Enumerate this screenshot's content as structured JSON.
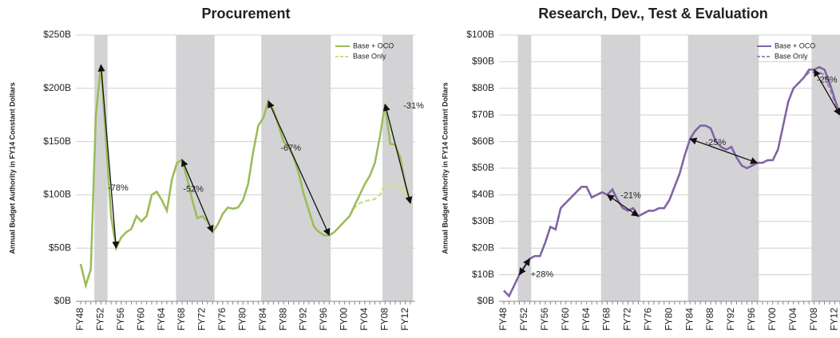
{
  "chart_data": [
    {
      "type": "line",
      "title": "Procurement",
      "y_label": "Annual Budget Authority in FY14 Constant Dollars",
      "categories": [
        "FY48",
        null,
        null,
        null,
        "FY52",
        null,
        null,
        null,
        "FY56",
        null,
        null,
        null,
        "FY60",
        null,
        null,
        null,
        "FY64",
        null,
        null,
        null,
        "FY68",
        null,
        null,
        null,
        "FY72",
        null,
        null,
        null,
        "FY76",
        null,
        null,
        null,
        "FY80",
        null,
        null,
        null,
        "FY84",
        null,
        null,
        null,
        "FY88",
        null,
        null,
        null,
        "FY92",
        null,
        null,
        null,
        "FY96",
        null,
        null,
        null,
        "FY00",
        null,
        null,
        null,
        "FY04",
        null,
        null,
        null,
        "FY08",
        null,
        null,
        null,
        "FY12",
        null
      ],
      "series": [
        {
          "name": "Base + OCO",
          "color": "#9bbb59",
          "dashed": false,
          "values": [
            35,
            15,
            30,
            175,
            222,
            150,
            80,
            50,
            60,
            65,
            68,
            80,
            75,
            80,
            100,
            103,
            95,
            85,
            115,
            130,
            133,
            115,
            95,
            78,
            80,
            75,
            65,
            72,
            82,
            88,
            87,
            88,
            95,
            110,
            140,
            165,
            172,
            188,
            180,
            165,
            150,
            145,
            135,
            120,
            100,
            85,
            70,
            65,
            62,
            62,
            65,
            70,
            75,
            80,
            90,
            100,
            110,
            118,
            130,
            155,
            185,
            148,
            147,
            135,
            110,
            92
          ]
        },
        {
          "name": "Base Only",
          "color": "#d4dc8c",
          "dashed": true,
          "values": [
            35,
            15,
            30,
            175,
            222,
            150,
            80,
            50,
            60,
            65,
            68,
            80,
            75,
            80,
            100,
            103,
            95,
            85,
            115,
            130,
            133,
            115,
            95,
            78,
            80,
            75,
            65,
            72,
            82,
            88,
            87,
            88,
            95,
            110,
            140,
            165,
            172,
            188,
            180,
            165,
            150,
            145,
            135,
            120,
            100,
            85,
            70,
            65,
            62,
            62,
            65,
            70,
            75,
            80,
            88,
            92,
            94,
            95,
            96,
            100,
            110,
            110,
            110,
            105,
            100,
            95
          ]
        }
      ],
      "ylim": [
        0,
        250
      ],
      "yticks": [
        {
          "value": 0,
          "label": "$0B"
        },
        {
          "value": 50,
          "label": "$50B"
        },
        {
          "value": 100,
          "label": "$100B"
        },
        {
          "value": 150,
          "label": "$150B"
        },
        {
          "value": 200,
          "label": "$200B"
        },
        {
          "value": 250,
          "label": "$250B"
        }
      ],
      "grid": true,
      "legend": "upper right",
      "annotations": [
        "-78%",
        "-52%",
        "-67%",
        "-31%"
      ]
    },
    {
      "type": "line",
      "title": "Research, Dev., Test & Evaluation",
      "y_label": "Annual Budget Authority in FY14 Constant Dollars",
      "categories": [
        "FY48",
        null,
        null,
        null,
        "FY52",
        null,
        null,
        null,
        "FY56",
        null,
        null,
        null,
        "FY60",
        null,
        null,
        null,
        "FY64",
        null,
        null,
        null,
        "FY68",
        null,
        null,
        null,
        "FY72",
        null,
        null,
        null,
        "FY76",
        null,
        null,
        null,
        "FY80",
        null,
        null,
        null,
        "FY84",
        null,
        null,
        null,
        "FY88",
        null,
        null,
        null,
        "FY92",
        null,
        null,
        null,
        "FY96",
        null,
        null,
        null,
        "FY00",
        null,
        null,
        null,
        "FY04",
        null,
        null,
        null,
        "FY08",
        null,
        null,
        null,
        "FY12",
        null
      ],
      "series": [
        {
          "name": "Base + OCO",
          "color": "#8064a2",
          "dashed": false,
          "values": [
            4,
            2,
            6,
            10,
            13,
            16,
            17,
            17,
            22,
            28,
            27,
            35,
            37,
            39,
            41,
            43,
            43,
            39,
            40,
            41,
            40,
            42,
            38,
            35,
            34,
            35,
            32,
            33,
            34,
            34,
            35,
            35,
            38,
            43,
            48,
            55,
            61,
            64,
            66,
            66,
            65,
            60,
            58,
            57,
            58,
            54,
            51,
            50,
            51,
            52,
            52,
            53,
            53,
            57,
            66,
            75,
            80,
            82,
            84,
            87,
            87,
            88,
            87,
            82,
            76,
            70
          ]
        },
        {
          "name": "Base Only",
          "color": "#9f8cc0",
          "dashed": true,
          "values": [
            4,
            2,
            6,
            10,
            13,
            16,
            17,
            17,
            22,
            28,
            27,
            35,
            37,
            39,
            41,
            43,
            43,
            39,
            40,
            41,
            40,
            42,
            38,
            35,
            34,
            35,
            32,
            33,
            34,
            34,
            35,
            35,
            38,
            43,
            48,
            55,
            61,
            64,
            66,
            66,
            65,
            60,
            58,
            57,
            58,
            54,
            51,
            50,
            51,
            52,
            52,
            53,
            53,
            57,
            66,
            75,
            80,
            82,
            84,
            86,
            86,
            86,
            85,
            80,
            75,
            69
          ]
        }
      ],
      "ylim": [
        0,
        100
      ],
      "yticks": [
        {
          "value": 0,
          "label": "$0B"
        },
        {
          "value": 10,
          "label": "$10B"
        },
        {
          "value": 20,
          "label": "$20B"
        },
        {
          "value": 30,
          "label": "$30B"
        },
        {
          "value": 40,
          "label": "$40B"
        },
        {
          "value": 50,
          "label": "$50B"
        },
        {
          "value": 60,
          "label": "$60B"
        },
        {
          "value": 70,
          "label": "$70B"
        },
        {
          "value": 80,
          "label": "$80B"
        },
        {
          "value": 90,
          "label": "$90B"
        },
        {
          "value": 100,
          "label": "$100B"
        }
      ],
      "grid": true,
      "legend": "upper right",
      "annotations": [
        "+28%",
        "-21%",
        "-25%",
        "-25%"
      ]
    }
  ]
}
